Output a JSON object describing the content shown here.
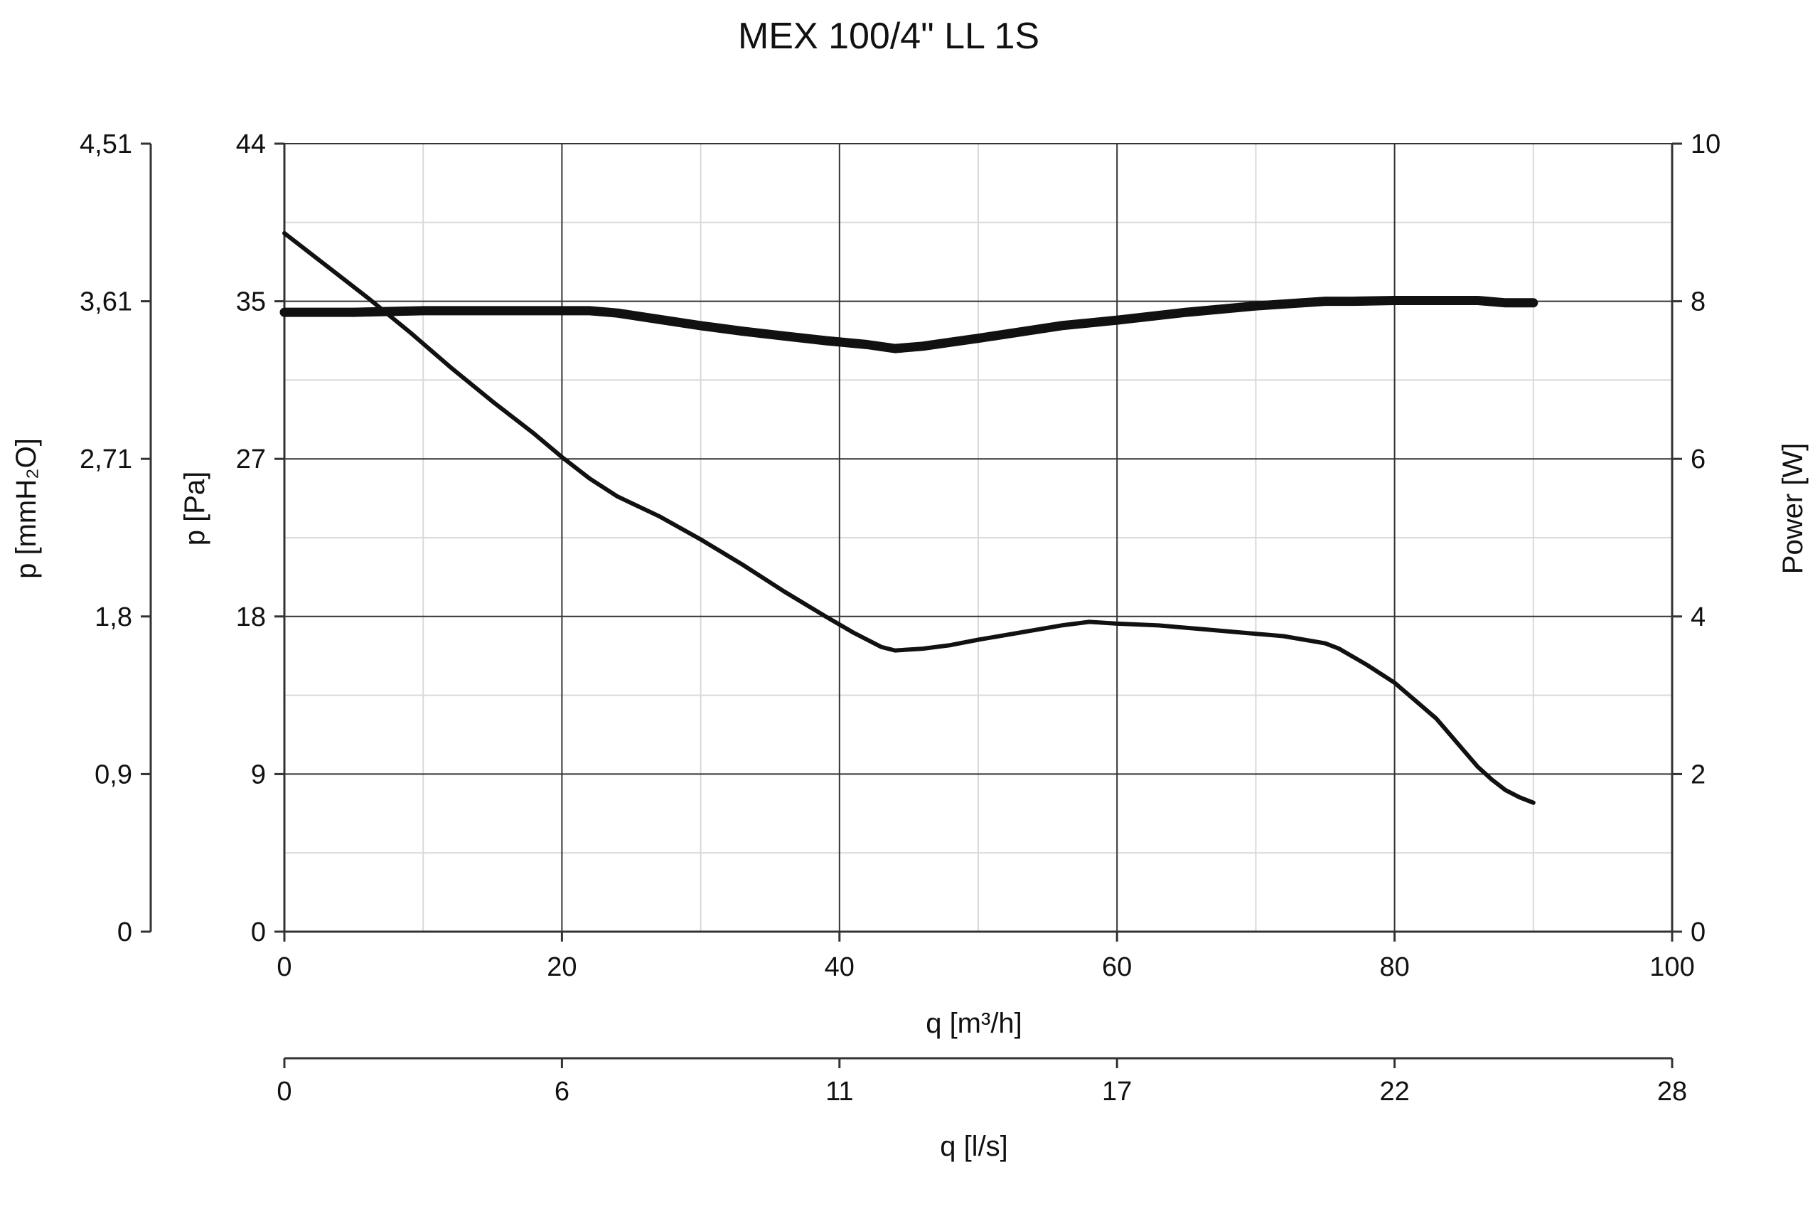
{
  "chart_data": {
    "type": "line",
    "title": "MEX 100/4\" LL 1S",
    "xlabel": "q [m³/h]",
    "x2label": "q [l/s]",
    "ylabel": "p [Pa]",
    "y2label": "p [mmH₂O]",
    "y3label": "Power [W]",
    "xlim": [
      0,
      100
    ],
    "ylim": [
      0,
      44
    ],
    "y3lim": [
      0,
      10
    ],
    "x_ticks": [
      "0",
      "20",
      "40",
      "60",
      "80",
      "100"
    ],
    "x2_ticks": [
      "0",
      "6",
      "11",
      "17",
      "22",
      "28"
    ],
    "y_ticks": [
      "0",
      "9",
      "18",
      "27",
      "35",
      "44"
    ],
    "y2_ticks": [
      "0",
      "0,9",
      "1,8",
      "2,71",
      "3,61",
      "4,51"
    ],
    "y3_ticks": [
      "0",
      "2",
      "4",
      "6",
      "8",
      "10"
    ],
    "grid": true,
    "series": [
      {
        "axis": "pressure",
        "x": [
          0,
          3,
          6,
          9,
          12,
          15,
          18,
          20,
          22,
          24,
          27,
          30,
          33,
          36,
          39,
          41,
          43,
          44,
          46,
          48,
          50,
          53,
          56,
          58,
          60,
          63,
          66,
          69,
          72,
          75,
          76,
          78,
          80,
          83,
          85,
          86,
          87,
          88,
          89,
          90
        ],
        "y": [
          39,
          37.2,
          35.4,
          33.5,
          31.5,
          29.6,
          27.8,
          26.5,
          25.3,
          24.3,
          23.2,
          21.9,
          20.5,
          19.0,
          17.6,
          16.7,
          15.9,
          15.7,
          15.8,
          16.0,
          16.3,
          16.7,
          17.1,
          17.3,
          17.2,
          17.1,
          16.9,
          16.7,
          16.5,
          16.1,
          15.8,
          14.9,
          13.9,
          11.9,
          10.1,
          9.2,
          8.5,
          7.9,
          7.5,
          7.2
        ]
      },
      {
        "axis": "power",
        "x": [
          0,
          5,
          10,
          15,
          20,
          22,
          24,
          27,
          30,
          33,
          36,
          39,
          42,
          44,
          46,
          48,
          50,
          53,
          56,
          60,
          65,
          70,
          75,
          77,
          80,
          82,
          84,
          86,
          88,
          89,
          90
        ],
        "y": [
          7.86,
          7.86,
          7.88,
          7.88,
          7.88,
          7.88,
          7.85,
          7.77,
          7.69,
          7.62,
          7.56,
          7.5,
          7.45,
          7.4,
          7.43,
          7.48,
          7.53,
          7.61,
          7.69,
          7.76,
          7.86,
          7.94,
          8.0,
          8.0,
          8.01,
          8.01,
          8.01,
          8.01,
          7.98,
          7.98,
          7.98
        ]
      }
    ]
  }
}
